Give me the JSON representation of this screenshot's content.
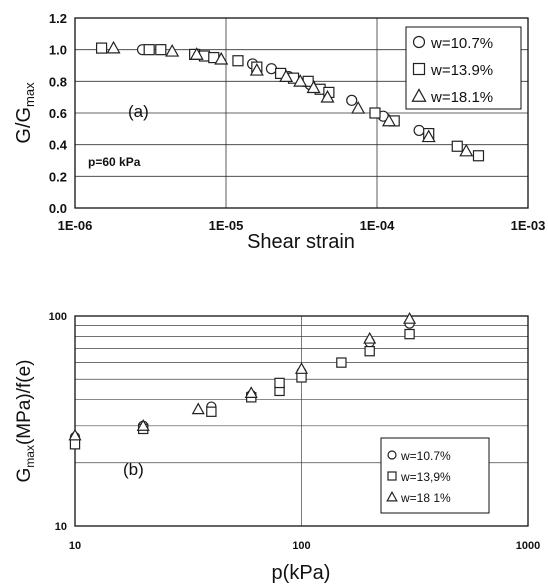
{
  "chart_data": [
    {
      "type": "scatter",
      "panel_label": "(a)",
      "annotation": "p=60 kPa",
      "xlabel": "Shear strain",
      "ylabel": "G/G",
      "ylabel_sub": "max",
      "x_scale": "log",
      "xlim": [
        1e-06,
        0.001
      ],
      "ylim": [
        0,
        1.2
      ],
      "grid": true,
      "legend_position": "top-right",
      "x_ticks": [
        "1E-06",
        "1E-05",
        "1E-04",
        "1E-03"
      ],
      "x_tick_values": [
        1e-06,
        1e-05,
        0.0001,
        0.001
      ],
      "y_ticks": [
        "0.0",
        "0.2",
        "0.4",
        "0.6",
        "0.8",
        "1.0",
        "1.2"
      ],
      "y_tick_values": [
        0,
        0.2,
        0.4,
        0.6,
        0.8,
        1.0,
        1.2
      ],
      "series": [
        {
          "name": "w=10.7%",
          "marker": "circle",
          "points": [
            [
              2.8e-06,
              1.0
            ],
            [
              6.2e-06,
              0.97
            ],
            [
              1.5e-05,
              0.91
            ],
            [
              2e-05,
              0.88
            ],
            [
              2.6e-05,
              0.83
            ],
            [
              3.6e-05,
              0.78
            ],
            [
              6.8e-05,
              0.68
            ],
            [
              0.00011,
              0.58
            ],
            [
              0.00019,
              0.49
            ]
          ]
        },
        {
          "name": "w=13.9%",
          "marker": "square",
          "points": [
            [
              1.5e-06,
              1.01
            ],
            [
              3.1e-06,
              1.0
            ],
            [
              3.7e-06,
              1.0
            ],
            [
              6.2e-06,
              0.97
            ],
            [
              7.2e-06,
              0.96
            ],
            [
              8.3e-06,
              0.95
            ],
            [
              1.2e-05,
              0.93
            ],
            [
              1.6e-05,
              0.89
            ],
            [
              2.3e-05,
              0.85
            ],
            [
              2.8e-05,
              0.82
            ],
            [
              3.5e-05,
              0.8
            ],
            [
              4.2e-05,
              0.75
            ],
            [
              4.8e-05,
              0.73
            ],
            [
              9.7e-05,
              0.6
            ],
            [
              0.00013,
              0.55
            ],
            [
              0.00022,
              0.47
            ],
            [
              0.00034,
              0.39
            ],
            [
              0.00047,
              0.33
            ]
          ]
        },
        {
          "name": "w=18.1%",
          "marker": "triangle",
          "points": [
            [
              1.8e-06,
              1.01
            ],
            [
              4.4e-06,
              0.99
            ],
            [
              6.4e-06,
              0.97
            ],
            [
              9.3e-06,
              0.94
            ],
            [
              1.6e-05,
              0.87
            ],
            [
              2.5e-05,
              0.83
            ],
            [
              3.1e-05,
              0.8
            ],
            [
              3.8e-05,
              0.76
            ],
            [
              4.7e-05,
              0.7
            ],
            [
              7.5e-05,
              0.63
            ],
            [
              0.00012,
              0.55
            ],
            [
              0.00022,
              0.45
            ],
            [
              0.00039,
              0.36
            ]
          ]
        }
      ]
    },
    {
      "type": "scatter",
      "panel_label": "(b)",
      "xlabel": "p(kPa)",
      "ylabel_pre": "G",
      "ylabel_sub": "max",
      "ylabel_post": "(MPa)/f(e)",
      "x_scale": "log",
      "y_scale": "log",
      "xlim": [
        10,
        1000
      ],
      "ylim": [
        10,
        100
      ],
      "grid": true,
      "legend_position": "bottom-right",
      "x_ticks": [
        "10",
        "100",
        "1000"
      ],
      "x_tick_values": [
        10,
        100,
        1000
      ],
      "y_ticks": [
        "10",
        "100"
      ],
      "y_tick_values": [
        10,
        100
      ],
      "series": [
        {
          "name": "w=10.7%",
          "marker": "circle",
          "points": [
            [
              10,
              26.5
            ],
            [
              20,
              30
            ],
            [
              40,
              37
            ],
            [
              60,
              42
            ],
            [
              100,
              54
            ],
            [
              200,
              75
            ],
            [
              300,
              92
            ]
          ]
        },
        {
          "name": "w=13,9%",
          "marker": "square",
          "points": [
            [
              10,
              24.5
            ],
            [
              20,
              29
            ],
            [
              40,
              35
            ],
            [
              60,
              41
            ],
            [
              80,
              44
            ],
            [
              80,
              48
            ],
            [
              100,
              51
            ],
            [
              150,
              60
            ],
            [
              200,
              68
            ],
            [
              300,
              82
            ]
          ]
        },
        {
          "name": "w=18 1%",
          "marker": "triangle",
          "points": [
            [
              10,
              27
            ],
            [
              20,
              30
            ],
            [
              35,
              36
            ],
            [
              60,
              43
            ],
            [
              100,
              56
            ],
            [
              200,
              78
            ],
            [
              300,
              97
            ]
          ]
        }
      ]
    }
  ]
}
